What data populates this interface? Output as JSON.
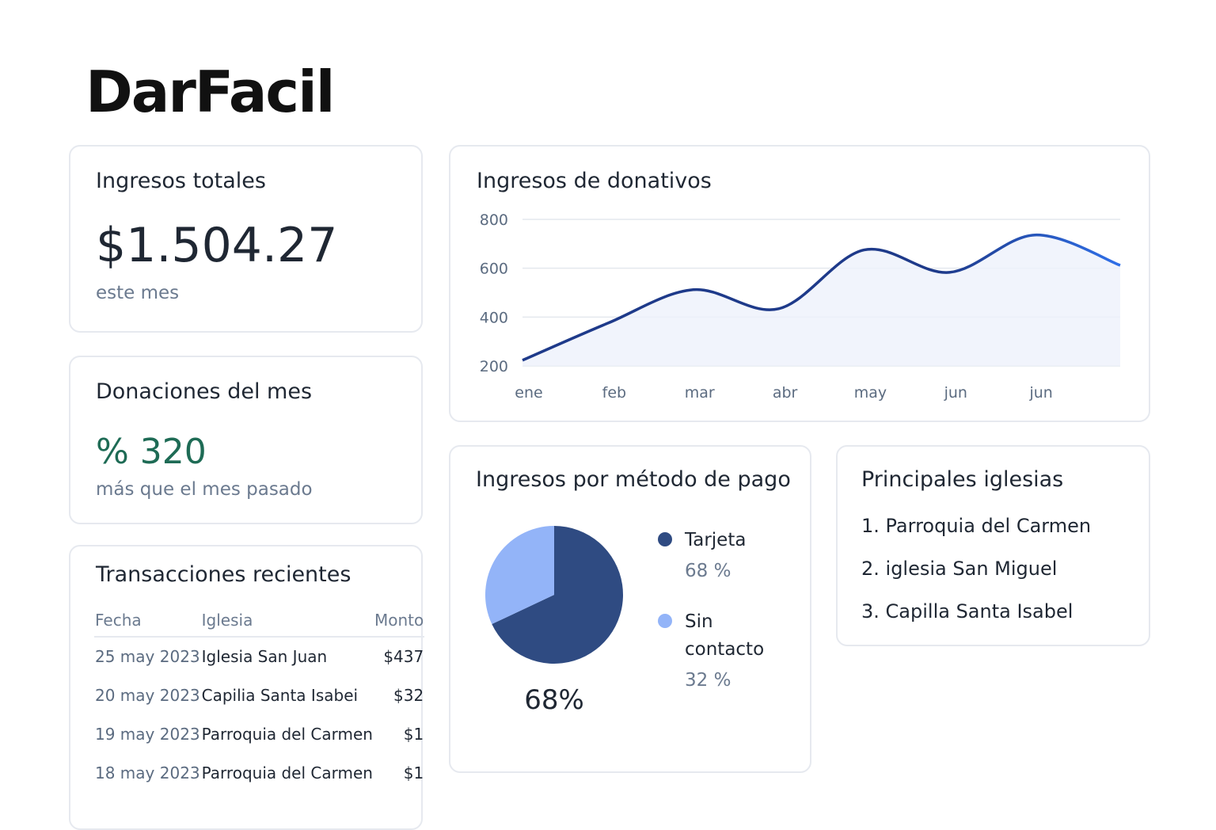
{
  "header": {
    "logo": "DarFacil"
  },
  "total_card": {
    "title": "Ingresos totales",
    "value": "$1.504.27",
    "note": "este mes"
  },
  "donations_card": {
    "title": "Donaciones del mes",
    "value": "% 320",
    "note": "más que el mes pasado"
  },
  "transactions": {
    "title": "Transacciones recientes",
    "columns": [
      "Fecha",
      "Iglesia",
      "Monto"
    ],
    "rows": [
      [
        "25 may 2023",
        "Iglesia San Juan",
        "$437"
      ],
      [
        "20 may 2023",
        "Capilia Santa Isabei",
        "$32"
      ],
      [
        "19 may 2023",
        "Parroquia del Carmen",
        "$1"
      ],
      [
        "18 may 2023",
        "Parroquia del Carmen",
        "$1"
      ]
    ]
  },
  "churches": {
    "title": "Principales iglesias",
    "items": [
      "1. Parroquia del Carmen",
      "2. iglesia San Miguel",
      "3. Capilla Santa Isabel"
    ]
  },
  "chart_data": [
    {
      "type": "line",
      "title": "Ingresos de donativos",
      "categories": [
        "ene",
        "feb",
        "mar",
        "abr",
        "may",
        "jun",
        "jun",
        null
      ],
      "values": [
        223,
        375,
        512,
        434,
        675,
        583,
        736,
        612
      ],
      "color": "#1e3a8a",
      "ylim": [
        200,
        800
      ],
      "yticks": [
        200,
        400,
        600,
        800
      ],
      "grid": true
    },
    {
      "type": "pie",
      "title": "Ingresos por método de pago",
      "series": [
        {
          "name": "Tarjeta",
          "color": "#2f4b82",
          "values": [
            68
          ],
          "value_labels": [
            "68 %"
          ]
        },
        {
          "name": "Sin contacto",
          "color": "#93b4f8",
          "values": [
            32
          ],
          "value_labels": [
            "32 %"
          ]
        }
      ],
      "annotation": "68%"
    }
  ]
}
